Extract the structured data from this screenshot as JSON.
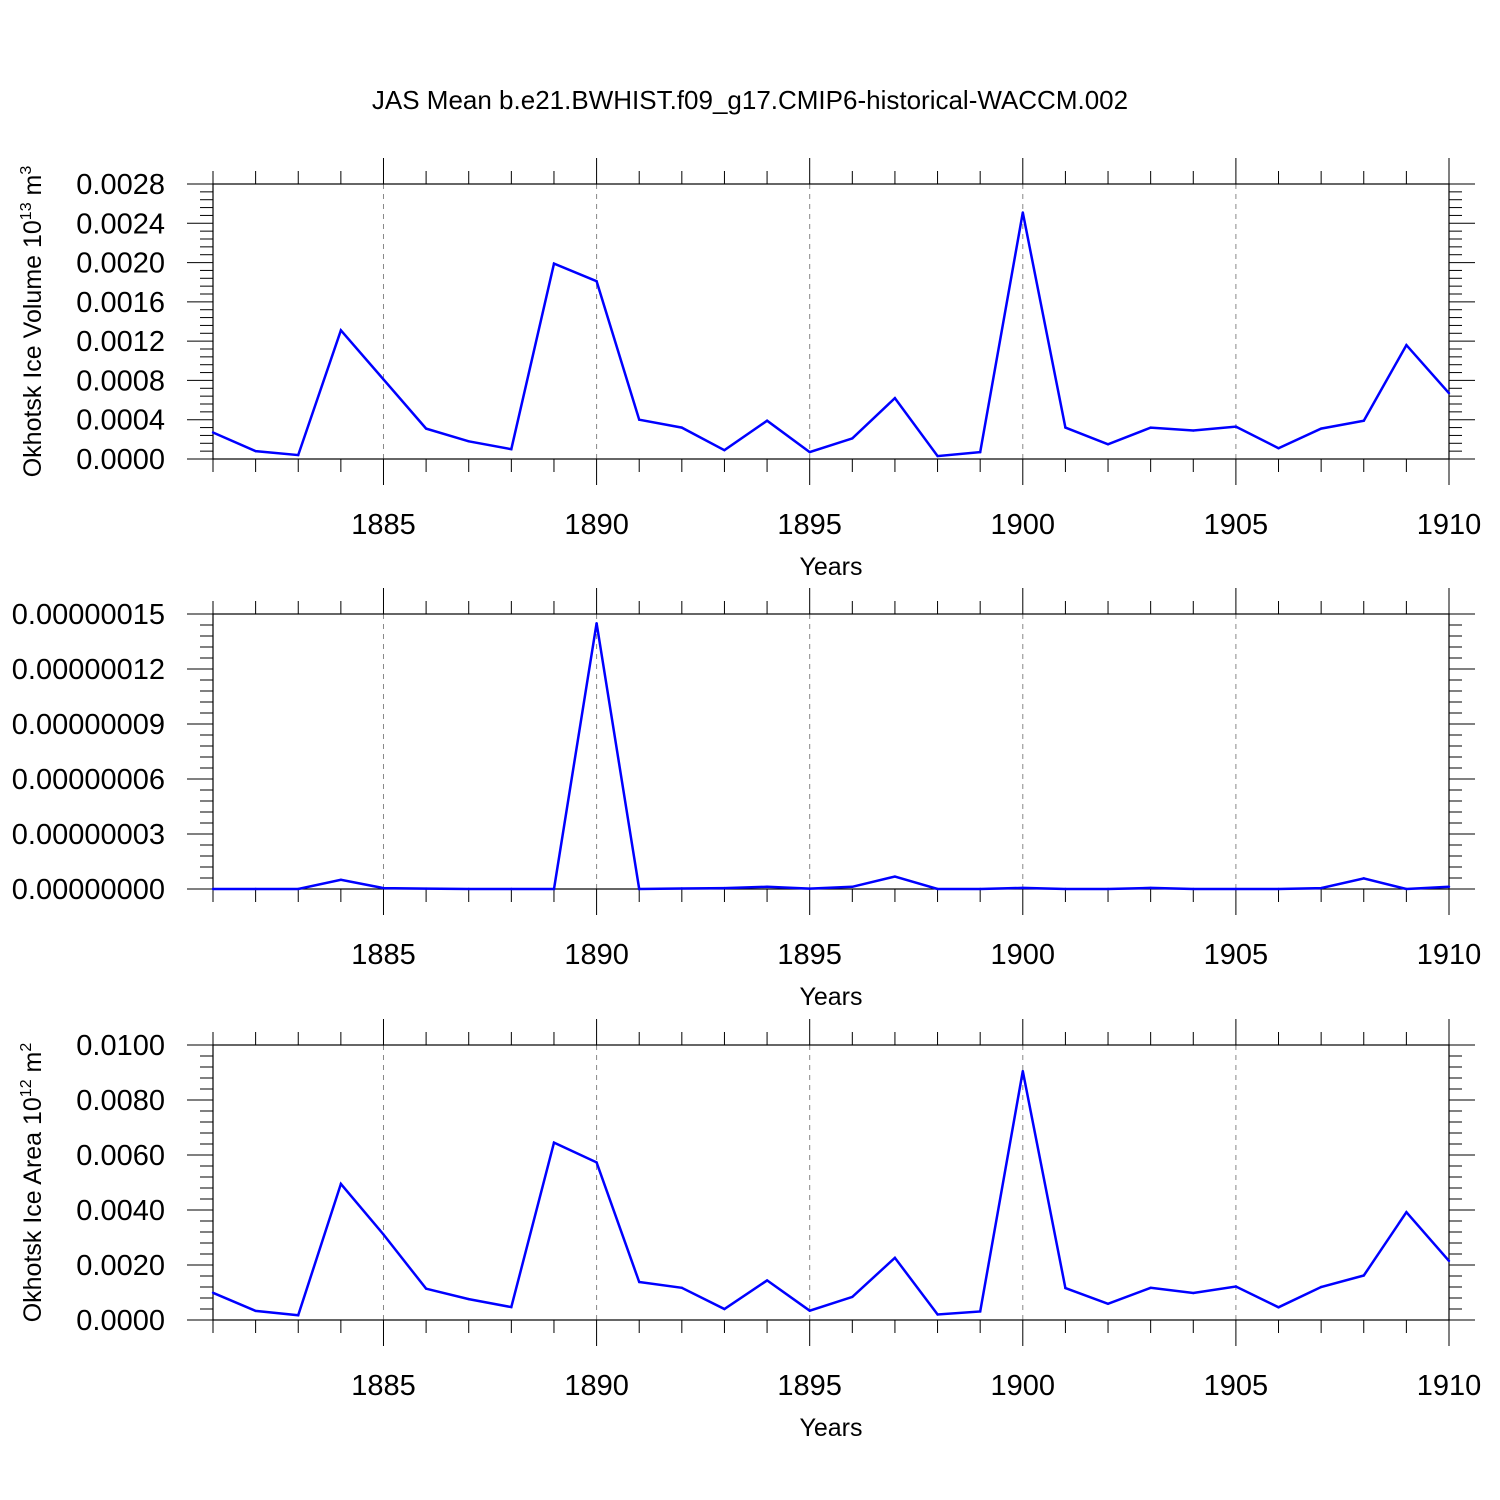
{
  "title": "JAS Mean b.e21.BWHIST.f09_g17.CMIP6-historical-WACCM.002",
  "x_ticks": [
    1885,
    1890,
    1895,
    1900,
    1905,
    1910
  ],
  "chart_data": [
    {
      "type": "line",
      "xlabel": "Years",
      "ylabel": "Okhotsk Ice Volume 10",
      "ylabel_exp": "13",
      "ylabel_unit": " m",
      "ylabel_unit_exp": "3",
      "ylim": [
        0,
        0.0028
      ],
      "yticks": [
        "0.0000",
        "0.0004",
        "0.0008",
        "0.0012",
        "0.0016",
        "0.0020",
        "0.0024",
        "0.0028"
      ],
      "xlim": [
        1881,
        1910
      ],
      "series_color": "#0000ff",
      "x": [
        1881,
        1882,
        1883,
        1884,
        1885,
        1886,
        1887,
        1888,
        1889,
        1890,
        1891,
        1892,
        1893,
        1894,
        1895,
        1896,
        1897,
        1898,
        1899,
        1900,
        1901,
        1902,
        1903,
        1904,
        1905,
        1906,
        1907,
        1908,
        1909,
        1910
      ],
      "values": [
        0.00027,
        8e-05,
        4e-05,
        0.00131,
        0.00081,
        0.00031,
        0.00018,
        0.0001,
        0.00199,
        0.00181,
        0.0004,
        0.00032,
        9e-05,
        0.00039,
        7e-05,
        0.00021,
        0.00062,
        3e-05,
        7e-05,
        0.00251,
        0.00032,
        0.00015,
        0.00032,
        0.00029,
        0.00033,
        0.00011,
        0.00031,
        0.00039,
        0.00116,
        0.00067
      ]
    },
    {
      "type": "line",
      "xlabel": "Years",
      "ylabel": "",
      "ylim": [
        0,
        1.5e-07
      ],
      "yticks": [
        "0.00000000",
        "0.00000003",
        "0.00000006",
        "0.00000009",
        "0.00000012",
        "0.00000015"
      ],
      "xlim": [
        1881,
        1910
      ],
      "series_color": "#0000ff",
      "x": [
        1881,
        1882,
        1883,
        1884,
        1885,
        1886,
        1887,
        1888,
        1889,
        1890,
        1891,
        1892,
        1893,
        1894,
        1895,
        1896,
        1897,
        1898,
        1899,
        1900,
        1901,
        1902,
        1903,
        1904,
        1905,
        1906,
        1907,
        1908,
        1909,
        1910
      ],
      "values": [
        0,
        0,
        0,
        5e-09,
        5e-10,
        2e-10,
        0,
        0,
        0,
        1.45e-07,
        0,
        3e-10,
        5e-10,
        1.2e-09,
        2e-10,
        1.2e-09,
        6.8e-09,
        0,
        0,
        6e-10,
        0,
        0,
        6e-10,
        0,
        0,
        0,
        5e-10,
        5.8e-09,
        0,
        1.2e-09
      ]
    },
    {
      "type": "line",
      "xlabel": "Years",
      "ylabel": "Okhotsk Ice Area 10",
      "ylabel_exp": "12",
      "ylabel_unit": " m",
      "ylabel_unit_exp": "2",
      "ylim": [
        0,
        0.01
      ],
      "yticks": [
        "0.0000",
        "0.0020",
        "0.0040",
        "0.0060",
        "0.0080",
        "0.0100"
      ],
      "xlim": [
        1881,
        1910
      ],
      "series_color": "#0000ff",
      "x": [
        1881,
        1882,
        1883,
        1884,
        1885,
        1886,
        1887,
        1888,
        1889,
        1890,
        1891,
        1892,
        1893,
        1894,
        1895,
        1896,
        1897,
        1898,
        1899,
        1900,
        1901,
        1902,
        1903,
        1904,
        1905,
        1906,
        1907,
        1908,
        1909,
        1910
      ],
      "values": [
        0.00099,
        0.00033,
        0.00017,
        0.00495,
        0.00311,
        0.00114,
        0.00076,
        0.00047,
        0.00645,
        0.00573,
        0.00138,
        0.00117,
        0.0004,
        0.00144,
        0.00034,
        0.00084,
        0.00226,
        0.0002,
        0.00031,
        0.00905,
        0.00116,
        0.00059,
        0.00117,
        0.00098,
        0.00122,
        0.00046,
        0.0012,
        0.00162,
        0.00392,
        0.00215
      ]
    }
  ]
}
